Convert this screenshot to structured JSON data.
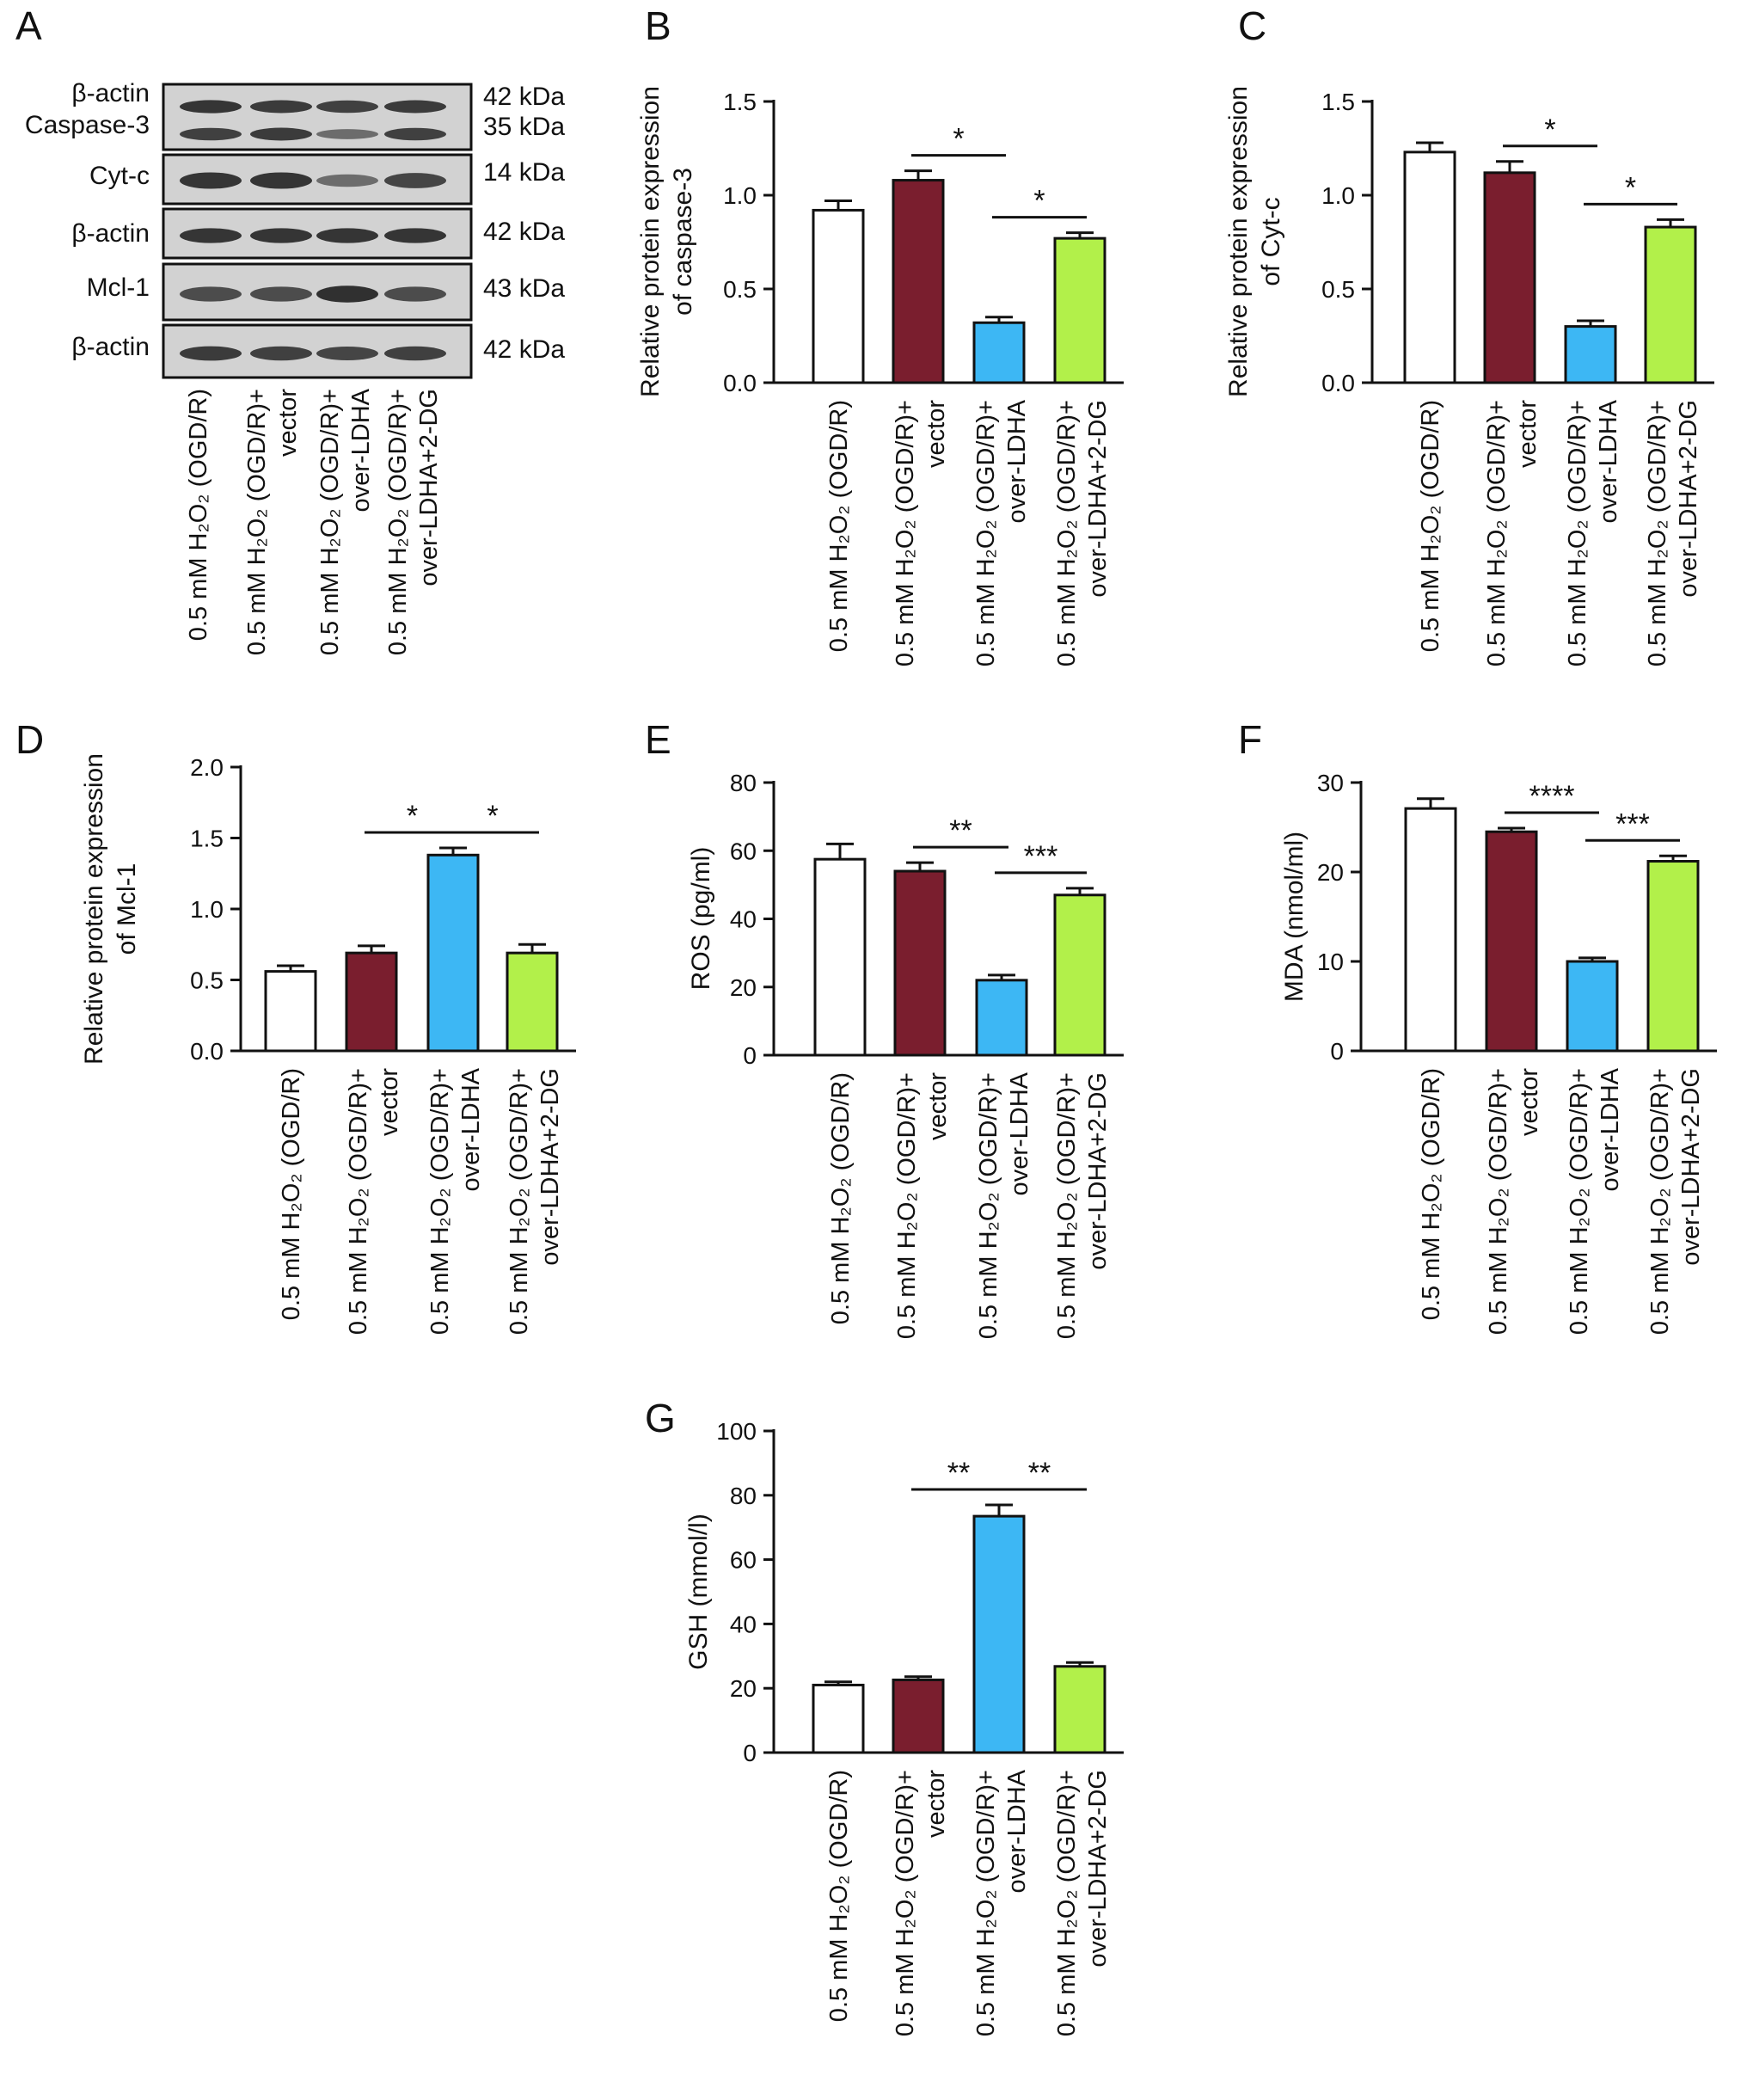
{
  "figure": {
    "panel_letters": [
      "A",
      "B",
      "C",
      "D",
      "E",
      "F",
      "G"
    ]
  },
  "western_blot": {
    "panel": "A",
    "bands": [
      {
        "label": "β-actin",
        "kda": "42 kDa"
      },
      {
        "label": "Caspase-3",
        "kda": "35 kDa"
      },
      {
        "label": "Cyt-c",
        "kda": "14 kDa"
      },
      {
        "label": "β-actin",
        "kda": "42 kDa"
      },
      {
        "label": "Mcl-1",
        "kda": "43 kDa"
      },
      {
        "label": "β-actin",
        "kda": "42 kDa"
      }
    ],
    "lanes": [
      [
        "0.5 mM H₂O₂ (OGD/R)"
      ],
      [
        "0.5 mM H₂O₂ (OGD/R)+",
        "vector"
      ],
      [
        "0.5 mM H₂O₂ (OGD/R)+",
        "over-LDHA"
      ],
      [
        "0.5 mM H₂O₂ (OGD/R)+",
        "over-LDHA+2-DG"
      ]
    ],
    "band_intensity": {
      "beta_actin_top": [
        0.9,
        0.85,
        0.8,
        0.85
      ],
      "caspase3": [
        0.8,
        0.85,
        0.4,
        0.8
      ],
      "cytc": [
        0.9,
        0.9,
        0.4,
        0.75
      ],
      "beta_actin_mid": [
        0.9,
        0.9,
        0.9,
        0.9
      ],
      "mcl1": [
        0.7,
        0.7,
        0.95,
        0.7
      ],
      "beta_actin_bottom": [
        0.85,
        0.8,
        0.75,
        0.8
      ]
    }
  },
  "colors": {
    "bar_fills": [
      "#ffffff",
      "#7a1e2e",
      "#3db7f4",
      "#b2f04a"
    ],
    "stroke": "#111111",
    "blot_bg": "#d2d2d2",
    "band": "#2a2a2a"
  },
  "chart_data": [
    {
      "panel": "B",
      "type": "bar",
      "categories": [
        [
          "0.5 mM H₂O₂ (OGD/R)"
        ],
        [
          "0.5 mM H₂O₂ (OGD/R)+",
          "vector"
        ],
        [
          "0.5 mM H₂O₂ (OGD/R)+",
          "over-LDHA"
        ],
        [
          "0.5 mM H₂O₂ (OGD/R)+",
          "over-LDHA+2-DG"
        ]
      ],
      "values": [
        0.92,
        1.08,
        0.32,
        0.77
      ],
      "errors": [
        0.05,
        0.05,
        0.03,
        0.03
      ],
      "ylabel": [
        "Relative protein expression",
        "of caspase-3"
      ],
      "ylim": [
        0,
        1.5
      ],
      "yticks": [
        "0.0",
        "0.5",
        "1.0",
        "1.5"
      ],
      "significance": [
        {
          "from": 1,
          "to": 2,
          "label": "*"
        },
        {
          "from": 2,
          "to": 3,
          "label": "*"
        }
      ]
    },
    {
      "panel": "C",
      "type": "bar",
      "categories": [
        [
          "0.5 mM H₂O₂ (OGD/R)"
        ],
        [
          "0.5 mM H₂O₂ (OGD/R)+",
          "vector"
        ],
        [
          "0.5 mM H₂O₂ (OGD/R)+",
          "over-LDHA"
        ],
        [
          "0.5 mM H₂O₂ (OGD/R)+",
          "over-LDHA+2-DG"
        ]
      ],
      "values": [
        1.23,
        1.12,
        0.3,
        0.83
      ],
      "errors": [
        0.05,
        0.06,
        0.03,
        0.04
      ],
      "ylabel": [
        "Relative protein expression",
        "of Cyt-c"
      ],
      "ylim": [
        0,
        1.5
      ],
      "yticks": [
        "0.0",
        "0.5",
        "1.0",
        "1.5"
      ],
      "significance": [
        {
          "from": 1,
          "to": 2,
          "label": "*"
        },
        {
          "from": 2,
          "to": 3,
          "label": "*"
        }
      ]
    },
    {
      "panel": "D",
      "type": "bar",
      "categories": [
        [
          "0.5 mM H₂O₂ (OGD/R)"
        ],
        [
          "0.5 mM H₂O₂ (OGD/R)+",
          "vector"
        ],
        [
          "0.5 mM H₂O₂ (OGD/R)+",
          "over-LDHA"
        ],
        [
          "0.5 mM H₂O₂ (OGD/R)+",
          "over-LDHA+2-DG"
        ]
      ],
      "values": [
        0.56,
        0.69,
        1.38,
        0.69
      ],
      "errors": [
        0.04,
        0.05,
        0.05,
        0.06
      ],
      "ylabel": [
        "Relative protein expression",
        "of Mcl-1"
      ],
      "ylim": [
        0,
        2.0
      ],
      "yticks": [
        "0.0",
        "0.5",
        "1.0",
        "1.5",
        "2.0"
      ],
      "significance": [
        {
          "from": 1,
          "to": 2,
          "label": "*"
        },
        {
          "from": 2,
          "to": 3,
          "label": "*"
        }
      ]
    },
    {
      "panel": "E",
      "type": "bar",
      "categories": [
        [
          "0.5 mM H₂O₂ (OGD/R)"
        ],
        [
          "0.5 mM H₂O₂ (OGD/R)+",
          "vector"
        ],
        [
          "0.5 mM H₂O₂ (OGD/R)+",
          "over-LDHA"
        ],
        [
          "0.5 mM H₂O₂ (OGD/R)+",
          "over-LDHA+2-DG"
        ]
      ],
      "values": [
        57.5,
        54,
        22,
        47
      ],
      "errors": [
        4.5,
        2.5,
        1.5,
        2
      ],
      "ylabel": [
        "ROS (pg/ml)"
      ],
      "ylim": [
        0,
        80
      ],
      "yticks": [
        "0",
        "20",
        "40",
        "60",
        "80"
      ],
      "significance": [
        {
          "from": 1,
          "to": 2,
          "label": "**"
        },
        {
          "from": 2,
          "to": 3,
          "label": "***"
        }
      ]
    },
    {
      "panel": "F",
      "type": "bar",
      "categories": [
        [
          "0.5 mM H₂O₂ (OGD/R)"
        ],
        [
          "0.5 mM H₂O₂ (OGD/R)+",
          "vector"
        ],
        [
          "0.5 mM H₂O₂ (OGD/R)+",
          "over-LDHA"
        ],
        [
          "0.5 mM H₂O₂ (OGD/R)+",
          "over-LDHA+2-DG"
        ]
      ],
      "values": [
        27.1,
        24.5,
        10,
        21.2
      ],
      "errors": [
        1.1,
        0.4,
        0.4,
        0.6
      ],
      "ylabel": [
        "MDA (nmol/ml)"
      ],
      "ylim": [
        0,
        30
      ],
      "yticks": [
        "0",
        "10",
        "20",
        "30"
      ],
      "significance": [
        {
          "from": 1,
          "to": 2,
          "label": "****"
        },
        {
          "from": 2,
          "to": 3,
          "label": "***"
        }
      ]
    },
    {
      "panel": "G",
      "type": "bar",
      "categories": [
        [
          "0.5 mM H₂O₂ (OGD/R)"
        ],
        [
          "0.5 mM H₂O₂ (OGD/R)+",
          "vector"
        ],
        [
          "0.5 mM H₂O₂ (OGD/R)+",
          "over-LDHA"
        ],
        [
          "0.5 mM H₂O₂ (OGD/R)+",
          "over-LDHA+2-DG"
        ]
      ],
      "values": [
        21,
        22.6,
        73.5,
        26.8
      ],
      "errors": [
        1,
        1,
        3.5,
        1.2
      ],
      "ylabel": [
        "GSH (mmol/l)"
      ],
      "ylim": [
        0,
        100
      ],
      "yticks": [
        "0",
        "20",
        "40",
        "60",
        "80",
        "100"
      ],
      "significance": [
        {
          "from": 1,
          "to": 2,
          "label": "**"
        },
        {
          "from": 2,
          "to": 3,
          "label": "**"
        }
      ]
    }
  ]
}
